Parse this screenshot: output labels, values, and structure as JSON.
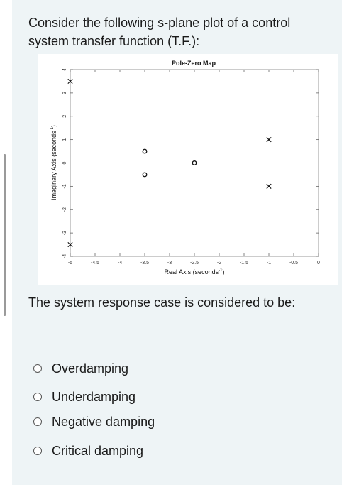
{
  "question": {
    "text": "Consider the following s-plane plot of a control system transfer function (T.F.):",
    "prompt": "The system response case is considered to be:"
  },
  "chart_data": {
    "type": "scatter",
    "title": "Pole-Zero Map",
    "xlabel": "Real Axis (seconds",
    "xlabel_sup": "-1",
    "xlabel_close": ")",
    "ylabel": "Imaginary Axis (seconds",
    "ylabel_sup": "-1",
    "ylabel_close": ")",
    "xlim": [
      -5,
      0
    ],
    "ylim": [
      -4,
      4
    ],
    "x_ticks": [
      "-5",
      "-4.5",
      "-4",
      "-3.5",
      "-3",
      "-2.5",
      "-2",
      "-1.5",
      "-1",
      "-0.5",
      "0"
    ],
    "y_ticks": [
      "4",
      "3",
      "2",
      "1",
      "0",
      "-1",
      "-2",
      "-3",
      "-4"
    ],
    "grid": false,
    "poles": [
      {
        "x": -1,
        "y": 1
      },
      {
        "x": -1,
        "y": -1
      },
      {
        "x": -5,
        "y": 3.5
      },
      {
        "x": -5,
        "y": -3.5
      }
    ],
    "zeros": [
      {
        "x": -3.5,
        "y": 0.5
      },
      {
        "x": -3.5,
        "y": -0.5
      },
      {
        "x": -2.5,
        "y": 0
      }
    ],
    "pole_marker": "x",
    "zero_marker": "o"
  },
  "options": [
    {
      "label": "Overdamping"
    },
    {
      "label": "Underdamping"
    },
    {
      "label": "Negative damping"
    },
    {
      "label": "Critical damping"
    }
  ]
}
